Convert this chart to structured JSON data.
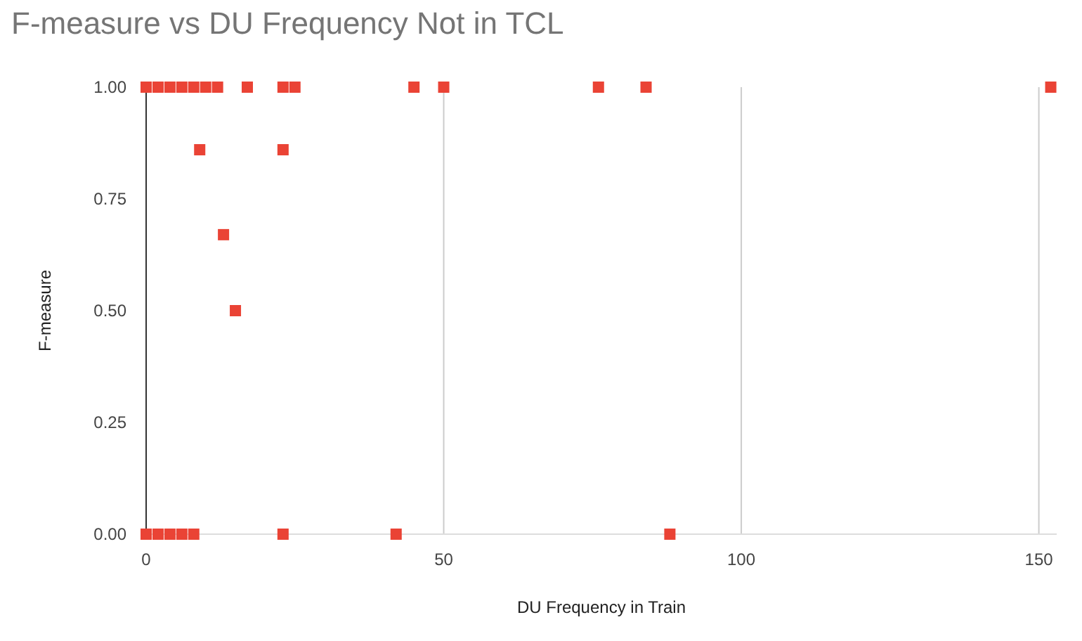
{
  "chart_data": {
    "type": "scatter",
    "title": "F-measure vs DU Frequency Not in TCL",
    "xlabel": "DU Frequency in Train",
    "ylabel": "F-measure",
    "x": [
      0,
      2,
      4,
      6,
      8,
      10,
      12,
      17,
      23,
      25,
      45,
      50,
      76,
      84,
      152,
      9,
      23,
      13,
      15,
      0,
      2,
      4,
      6,
      8,
      23,
      42,
      88
    ],
    "values": [
      1,
      1,
      1,
      1,
      1,
      1,
      1,
      1,
      1,
      1,
      1,
      1,
      1,
      1,
      1,
      0.86,
      0.86,
      0.67,
      0.5,
      0,
      0,
      0,
      0,
      0,
      0,
      0,
      0
    ],
    "color": "#ea4335",
    "marker": "square",
    "xlim": [
      0,
      153
    ],
    "xticks": [
      0,
      50,
      100,
      150
    ],
    "ylim": [
      0,
      1
    ],
    "yticks": [
      {
        "value": 0,
        "label": "0.00"
      },
      {
        "value": 0.25,
        "label": "0.25"
      },
      {
        "value": 0.5,
        "label": "0.50"
      },
      {
        "value": 0.75,
        "label": "0.75"
      },
      {
        "value": 1,
        "label": "1.00"
      }
    ],
    "grid": "x"
  }
}
